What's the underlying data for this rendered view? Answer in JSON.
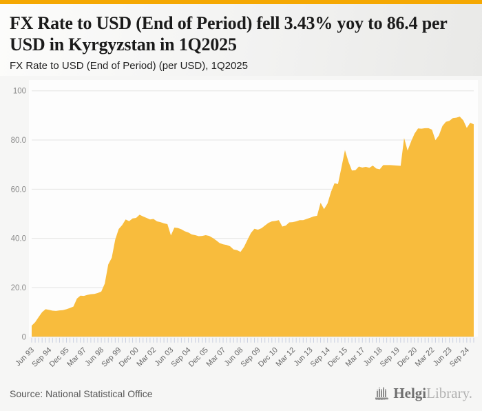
{
  "page": {
    "accent_bar_color": "#F5A802",
    "background_color": "#f6f6f5"
  },
  "header": {
    "title": "FX Rate to USD (End of Period) fell 3.43% yoy to 86.4 per USD in Kyrgyzstan in 1Q2025",
    "subtitle": "FX Rate to USD (End of Period) (per USD), 1Q2025"
  },
  "chart_data": {
    "type": "area",
    "title": "FX Rate to USD (End of Period) (per USD), 1Q2025",
    "series_name": "FX Rate to USD (End of Period), per USD, quarterly",
    "country": "Kyrgyzstan",
    "end_period": "1Q2025",
    "end_value": 86.4,
    "yoy_change_pct": -3.43,
    "ylim": [
      0,
      100
    ],
    "grid": true,
    "legend": false,
    "fill_color": "#F8BC3D",
    "plot_bg_color": "#fdfdfd",
    "gridline_color": "#e4e4e2",
    "axis_line_color": "#dcdfe8",
    "tick_color": "#c9cfe0",
    "y_label_color": "#8a8a8a",
    "x_label_color": "#666666",
    "y_ticks": [
      {
        "value": 100,
        "label": "100"
      },
      {
        "value": 80,
        "label": "80.0"
      },
      {
        "value": 60,
        "label": "60.0"
      },
      {
        "value": 40,
        "label": "40.0"
      },
      {
        "value": 20,
        "label": "20.0"
      },
      {
        "value": 0,
        "label": "0"
      }
    ],
    "x_tick_interval_quarters": 5,
    "x_tick_labels": [
      "Jun 93",
      "Sep 94",
      "Dec 95",
      "Mar 97",
      "Jun 98",
      "Sep 99",
      "Dec 00",
      "Mar 02",
      "Jun 03",
      "Sep 04",
      "Dec 05",
      "Mar 07",
      "Jun 08",
      "Sep 09",
      "Dec 10",
      "Mar 12",
      "Jun 13",
      "Sep 14",
      "Dec 15",
      "Mar 17",
      "Jun 18",
      "Sep 19",
      "Dec 20",
      "Mar 22",
      "Jun 23",
      "Sep 24"
    ],
    "values": [
      4.5,
      5.9,
      8.0,
      10.0,
      11.2,
      10.9,
      10.6,
      10.5,
      10.7,
      10.8,
      11.2,
      11.7,
      12.3,
      15.5,
      16.7,
      16.6,
      17.0,
      17.3,
      17.4,
      17.8,
      18.4,
      21.6,
      29.4,
      32.1,
      39.5,
      43.8,
      45.4,
      47.7,
      47.0,
      48.1,
      48.3,
      49.6,
      48.9,
      48.3,
      47.7,
      47.9,
      46.9,
      46.6,
      46.1,
      45.8,
      41.2,
      44.4,
      44.2,
      43.7,
      42.9,
      42.4,
      41.6,
      41.3,
      40.9,
      41.0,
      41.3,
      41.0,
      40.2,
      39.2,
      38.1,
      37.6,
      37.3,
      36.8,
      35.5,
      35.2,
      34.5,
      36.5,
      39.4,
      42.2,
      43.9,
      43.5,
      44.1,
      45.2,
      46.3,
      46.9,
      47.1,
      47.4,
      44.8,
      45.2,
      46.5,
      46.6,
      46.9,
      47.4,
      47.4,
      47.9,
      48.4,
      48.9,
      49.2,
      54.5,
      51.9,
      54.2,
      58.9,
      62.4,
      62.1,
      68.9,
      75.9,
      71.2,
      67.6,
      67.7,
      69.2,
      68.8,
      69.1,
      68.7,
      69.6,
      68.4,
      68.1,
      69.8,
      69.8,
      69.8,
      69.7,
      69.6,
      69.5,
      80.8,
      75.7,
      79.4,
      82.6,
      84.7,
      84.6,
      84.8,
      84.8,
      84.2,
      79.9,
      81.9,
      85.7,
      87.4,
      87.8,
      88.9,
      89.1,
      89.5,
      88.0,
      84.9,
      87.0,
      86.4
    ]
  },
  "footer": {
    "source": "Source: National Statistical Office",
    "brand_bold": "Helgi",
    "brand_light": "Library."
  }
}
